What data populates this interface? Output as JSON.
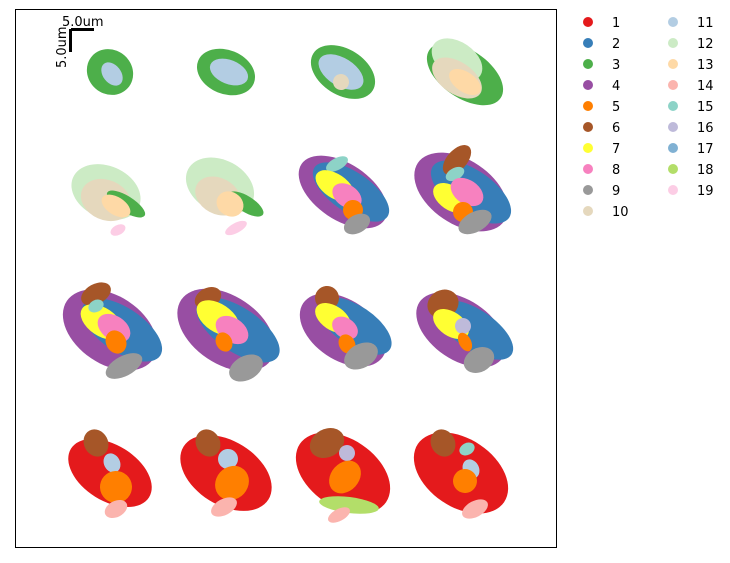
{
  "chart_data": {
    "type": "scatter",
    "title": "",
    "xlabel": "",
    "ylabel": "",
    "grid": false,
    "axis_ticks": false,
    "legend": {
      "placement": "outside-right",
      "columns": 2
    },
    "scale_bar": {
      "x_label": "5.0um",
      "y_label": "5.0um",
      "length_um": 5.0
    },
    "panels": {
      "rows": 4,
      "cols": 4,
      "layout": "spatial sections of a tissue, ordered left-to-right, top-to-bottom"
    },
    "categories": [
      {
        "id": "1",
        "color": "#e41a1c"
      },
      {
        "id": "2",
        "color": "#377eb8"
      },
      {
        "id": "3",
        "color": "#4daf4a"
      },
      {
        "id": "4",
        "color": "#984ea3"
      },
      {
        "id": "5",
        "color": "#ff7f00"
      },
      {
        "id": "6",
        "color": "#a65628"
      },
      {
        "id": "7",
        "color": "#ffff33"
      },
      {
        "id": "8",
        "color": "#f781bf"
      },
      {
        "id": "9",
        "color": "#999999"
      },
      {
        "id": "10",
        "color": "#e5d8bd"
      },
      {
        "id": "11",
        "color": "#b3cde3"
      },
      {
        "id": "12",
        "color": "#ccebc5"
      },
      {
        "id": "13",
        "color": "#fed9a6"
      },
      {
        "id": "14",
        "color": "#fbb4ae"
      },
      {
        "id": "15",
        "color": "#8dd3c7"
      },
      {
        "id": "16",
        "color": "#bebada"
      },
      {
        "id": "17",
        "color": "#80b1d3"
      },
      {
        "id": "18",
        "color": "#b3de69"
      },
      {
        "id": "19",
        "color": "#fccde5"
      }
    ]
  }
}
